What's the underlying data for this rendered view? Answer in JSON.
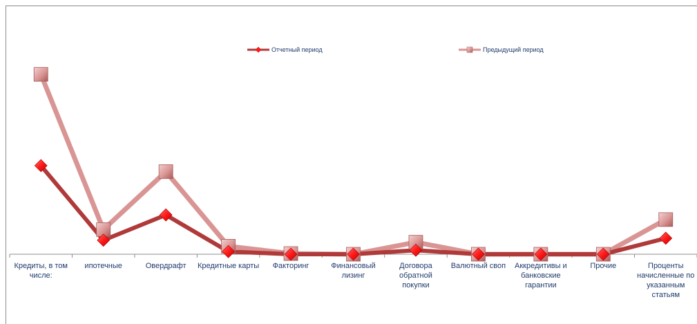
{
  "chart_data": {
    "type": "line",
    "title": "",
    "xlabel": "",
    "ylabel": "",
    "categories": [
      "Кредиты, в том числе:",
      "ипотечные",
      "Овердрафт",
      "Кредитные карты",
      "Факторинг",
      "Финансовый лизинг",
      "Договора обратной покупки",
      "Валютный своп",
      "Аккредитивы и банковские гарантии",
      "Прочие",
      "Проценты начисленные по указанным статьям"
    ],
    "series": [
      {
        "name": "Отчетный период",
        "values": [
          133,
          21,
          59,
          4,
          0,
          0,
          6,
          0,
          0,
          0,
          24
        ],
        "color": "#b03a3a",
        "marker": "diamond",
        "marker_color": "#ff1a1a"
      },
      {
        "name": "Предыдущий период",
        "values": [
          270,
          37,
          124,
          12,
          1,
          0,
          18,
          0,
          0,
          0,
          52
        ],
        "color": "#d99594",
        "marker": "square",
        "marker_color": "#d99594"
      }
    ],
    "ylim": [
      0,
      280
    ],
    "grid": false,
    "y_axis_visible": false,
    "legend_position": "top"
  }
}
